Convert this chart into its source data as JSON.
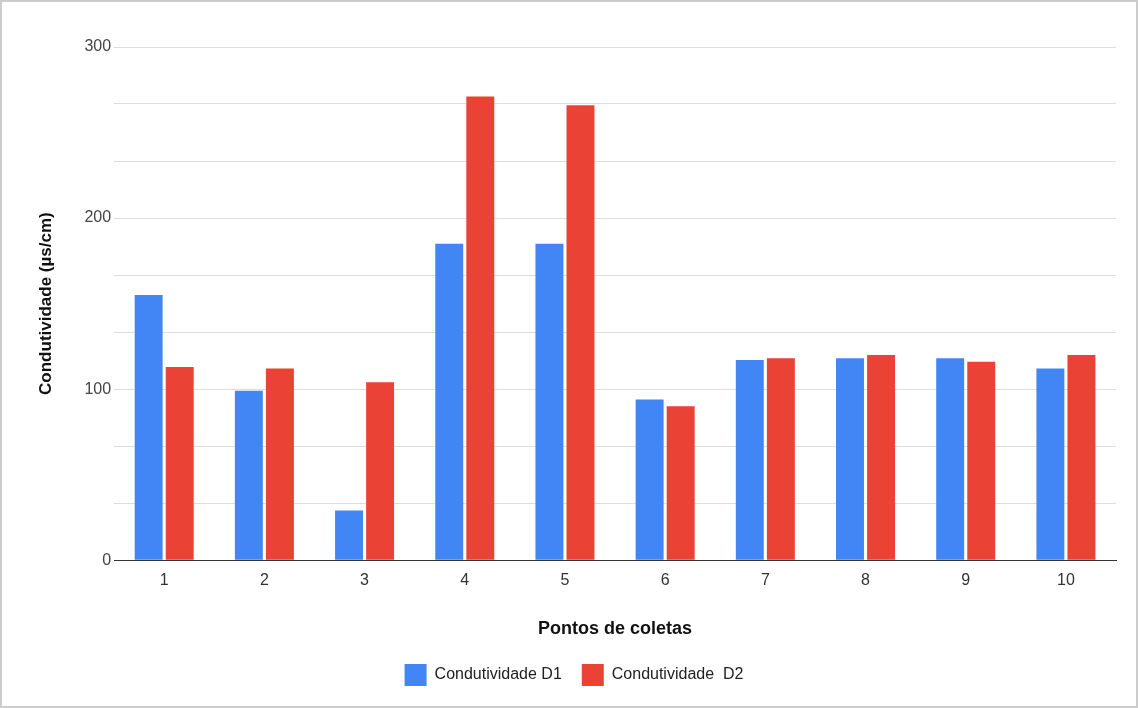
{
  "chart_data": {
    "type": "bar",
    "xlabel": "Pontos de coletas",
    "ylabel": "Condutividade (µs/cm)",
    "categories": [
      "1",
      "2",
      "3",
      "4",
      "5",
      "6",
      "7",
      "8",
      "9",
      "10"
    ],
    "series": [
      {
        "name": "Condutividade D1",
        "color": "#4285f4",
        "values": [
          155,
          99,
          29,
          185,
          185,
          94,
          117,
          118,
          118,
          112
        ]
      },
      {
        "name": "Condutividade  D2",
        "color": "#ea4335",
        "values": [
          113,
          112,
          104,
          271,
          266,
          90,
          118,
          120,
          116,
          120
        ]
      }
    ],
    "ylim": [
      0,
      300
    ],
    "yticks": [
      0,
      {
        "value": 33.3,
        "label": null
      },
      {
        "value": 66.7,
        "label": null
      },
      100,
      {
        "value": 133.3,
        "label": null
      },
      {
        "value": 166.7,
        "label": null
      },
      200,
      {
        "value": 233.3,
        "label": null
      },
      {
        "value": 266.7,
        "label": null
      },
      300
    ],
    "grid": "y",
    "legend": "bottom"
  }
}
